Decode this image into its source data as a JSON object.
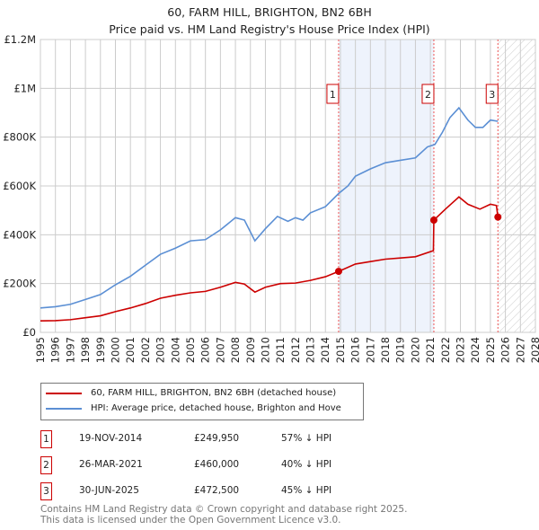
{
  "chart_data": {
    "type": "line",
    "title": "60, FARM HILL, BRIGHTON, BN2 6BH",
    "subtitle": "Price paid vs. HM Land Registry's House Price Index (HPI)",
    "xlim": [
      1995,
      2028
    ],
    "ylim": [
      0,
      1200000
    ],
    "yticks": [
      {
        "v": 0,
        "label": "£0"
      },
      {
        "v": 200000,
        "label": "£200K"
      },
      {
        "v": 400000,
        "label": "£400K"
      },
      {
        "v": 600000,
        "label": "£600K"
      },
      {
        "v": 800000,
        "label": "£800K"
      },
      {
        "v": 1000000,
        "label": "£1M"
      },
      {
        "v": 1200000,
        "label": "£1.2M"
      }
    ],
    "xticks": [
      "1995",
      "1996",
      "1997",
      "1998",
      "1999",
      "2000",
      "2001",
      "2002",
      "2003",
      "2004",
      "2005",
      "2006",
      "2007",
      "2008",
      "2009",
      "2010",
      "2011",
      "2012",
      "2013",
      "2014",
      "2015",
      "2016",
      "2017",
      "2018",
      "2019",
      "2020",
      "2021",
      "2022",
      "2023",
      "2024",
      "2025",
      "2026",
      "2027",
      "2028"
    ],
    "series": [
      {
        "name": "60, FARM HILL, BRIGHTON, BN2 6BH (detached house)",
        "color": "#cc0000",
        "points": [
          [
            1995,
            47000
          ],
          [
            1996,
            48000
          ],
          [
            1997,
            52000
          ],
          [
            1998,
            60000
          ],
          [
            1999,
            68000
          ],
          [
            2000,
            85000
          ],
          [
            2001,
            100000
          ],
          [
            2002,
            118000
          ],
          [
            2003,
            140000
          ],
          [
            2004,
            152000
          ],
          [
            2005,
            162000
          ],
          [
            2006,
            168000
          ],
          [
            2007,
            185000
          ],
          [
            2008,
            205000
          ],
          [
            2008.6,
            198000
          ],
          [
            2009.3,
            165000
          ],
          [
            2010,
            185000
          ],
          [
            2011,
            200000
          ],
          [
            2012,
            202000
          ],
          [
            2013,
            213000
          ],
          [
            2014,
            228000
          ],
          [
            2014.88,
            249950
          ],
          [
            2016,
            280000
          ],
          [
            2017,
            290000
          ],
          [
            2018,
            300000
          ],
          [
            2019,
            305000
          ],
          [
            2020,
            310000
          ],
          [
            2021.2,
            335000
          ],
          [
            2021.23,
            460000
          ],
          [
            2022,
            505000
          ],
          [
            2022.9,
            555000
          ],
          [
            2023.5,
            525000
          ],
          [
            2024.3,
            505000
          ],
          [
            2025,
            525000
          ],
          [
            2025.4,
            520000
          ],
          [
            2025.5,
            472500
          ]
        ]
      },
      {
        "name": "HPI: Average price, detached house, Brighton and Hove",
        "color": "#5b8fd4",
        "points": [
          [
            1995,
            100000
          ],
          [
            1996,
            105000
          ],
          [
            1997,
            115000
          ],
          [
            1998,
            135000
          ],
          [
            1999,
            155000
          ],
          [
            2000,
            195000
          ],
          [
            2001,
            230000
          ],
          [
            2002,
            275000
          ],
          [
            2003,
            320000
          ],
          [
            2004,
            345000
          ],
          [
            2005,
            375000
          ],
          [
            2006,
            380000
          ],
          [
            2007,
            420000
          ],
          [
            2008,
            470000
          ],
          [
            2008.6,
            460000
          ],
          [
            2009.3,
            375000
          ],
          [
            2010,
            425000
          ],
          [
            2010.8,
            475000
          ],
          [
            2011.5,
            455000
          ],
          [
            2012,
            470000
          ],
          [
            2012.5,
            460000
          ],
          [
            2013,
            490000
          ],
          [
            2014,
            515000
          ],
          [
            2014.9,
            570000
          ],
          [
            2015.5,
            600000
          ],
          [
            2016,
            640000
          ],
          [
            2017,
            670000
          ],
          [
            2018,
            695000
          ],
          [
            2018.5,
            700000
          ],
          [
            2019,
            705000
          ],
          [
            2020,
            715000
          ],
          [
            2020.8,
            760000
          ],
          [
            2021.3,
            770000
          ],
          [
            2021.8,
            820000
          ],
          [
            2022.3,
            880000
          ],
          [
            2022.9,
            920000
          ],
          [
            2023.5,
            870000
          ],
          [
            2024,
            840000
          ],
          [
            2024.5,
            840000
          ],
          [
            2025,
            870000
          ],
          [
            2025.5,
            865000
          ]
        ]
      }
    ],
    "sales": [
      {
        "n": "1",
        "x": 2014.88,
        "y": 249950,
        "date": "19-NOV-2014",
        "price": "£249,950",
        "hpi": "57% ↓ HPI"
      },
      {
        "n": "2",
        "x": 2021.23,
        "y": 460000,
        "date": "26-MAR-2021",
        "price": "£460,000",
        "hpi": "40% ↓ HPI"
      },
      {
        "n": "3",
        "x": 2025.5,
        "y": 472500,
        "date": "30-JUN-2025",
        "price": "£472,500",
        "hpi": "45% ↓ HPI"
      }
    ],
    "shaded_range": [
      2014.88,
      2021.23
    ],
    "forecast_from": 2025.5
  },
  "footer": {
    "line1": "Contains HM Land Registry data © Crown copyright and database right 2025.",
    "line2": "This data is licensed under the Open Government Licence v3.0."
  }
}
